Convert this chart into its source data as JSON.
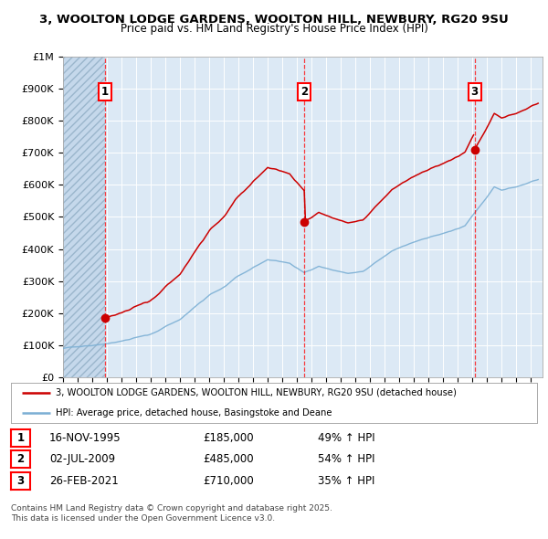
{
  "title_line1": "3, WOOLTON LODGE GARDENS, WOOLTON HILL, NEWBURY, RG20 9SU",
  "title_line2": "Price paid vs. HM Land Registry's House Price Index (HPI)",
  "ylim": [
    0,
    1000000
  ],
  "yticks": [
    0,
    100000,
    200000,
    300000,
    400000,
    500000,
    600000,
    700000,
    800000,
    900000,
    1000000
  ],
  "ytick_labels": [
    "£0",
    "£100K",
    "£200K",
    "£300K",
    "£400K",
    "£500K",
    "£600K",
    "£700K",
    "£800K",
    "£900K",
    "£1M"
  ],
  "xlim_start": 1993.0,
  "xlim_end": 2025.8,
  "sale_dates": [
    1995.88,
    2009.5,
    2021.15
  ],
  "sale_prices": [
    185000,
    485000,
    710000
  ],
  "sale_labels": [
    "1",
    "2",
    "3"
  ],
  "sale_date_strs": [
    "16-NOV-1995",
    "02-JUL-2009",
    "26-FEB-2021"
  ],
  "sale_price_strs": [
    "£185,000",
    "£485,000",
    "£710,000"
  ],
  "sale_hpi_strs": [
    "49% ↑ HPI",
    "54% ↑ HPI",
    "35% ↑ HPI"
  ],
  "legend_line1": "3, WOOLTON LODGE GARDENS, WOOLTON HILL, NEWBURY, RG20 9SU (detached house)",
  "legend_line2": "HPI: Average price, detached house, Basingstoke and Deane",
  "footer": "Contains HM Land Registry data © Crown copyright and database right 2025.\nThis data is licensed under the Open Government Licence v3.0.",
  "bg_color": "#dce9f5",
  "red_color": "#cc0000",
  "blue_color": "#7bafd4",
  "hatch_color": "#c0d0e0"
}
